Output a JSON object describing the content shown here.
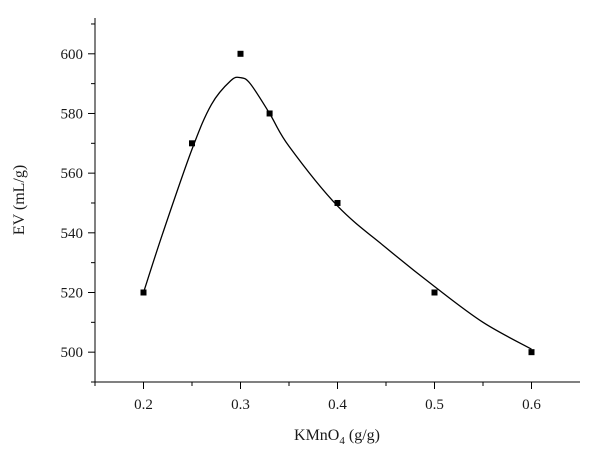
{
  "chart_data": {
    "type": "scatter",
    "xlabel": "KMnO4 (g/g)",
    "xlabel_parts": {
      "pre": "KMnO",
      "sub": "4",
      "post": " (g/g)"
    },
    "ylabel": "EV (mL/g)",
    "xlim": [
      0.15,
      0.65
    ],
    "ylim": [
      490,
      612
    ],
    "x_ticks": [
      0.2,
      0.3,
      0.4,
      0.5,
      0.6
    ],
    "x_tick_labels": [
      "0.2",
      "0.3",
      "0.4",
      "0.5",
      "0.6"
    ],
    "y_ticks": [
      500,
      520,
      540,
      560,
      580,
      600
    ],
    "y_tick_labels": [
      "500",
      "520",
      "540",
      "560",
      "580",
      "600"
    ],
    "grid": false,
    "series": [
      {
        "points": [
          {
            "x": 0.2,
            "y": 520
          },
          {
            "x": 0.25,
            "y": 570
          },
          {
            "x": 0.3,
            "y": 600
          },
          {
            "x": 0.33,
            "y": 580
          },
          {
            "x": 0.4,
            "y": 550
          },
          {
            "x": 0.5,
            "y": 520
          },
          {
            "x": 0.6,
            "y": 500
          }
        ],
        "marker": "square",
        "color": "#000000"
      }
    ],
    "fit_curve": {
      "style": "smooth line",
      "color": "#000000",
      "points": [
        {
          "x": 0.2,
          "y": 520
        },
        {
          "x": 0.22,
          "y": 540
        },
        {
          "x": 0.25,
          "y": 568
        },
        {
          "x": 0.27,
          "y": 583
        },
        {
          "x": 0.29,
          "y": 591
        },
        {
          "x": 0.3,
          "y": 592
        },
        {
          "x": 0.31,
          "y": 590
        },
        {
          "x": 0.33,
          "y": 580
        },
        {
          "x": 0.35,
          "y": 569
        },
        {
          "x": 0.4,
          "y": 549
        },
        {
          "x": 0.45,
          "y": 535
        },
        {
          "x": 0.5,
          "y": 522
        },
        {
          "x": 0.55,
          "y": 510
        },
        {
          "x": 0.6,
          "y": 501
        }
      ]
    }
  }
}
